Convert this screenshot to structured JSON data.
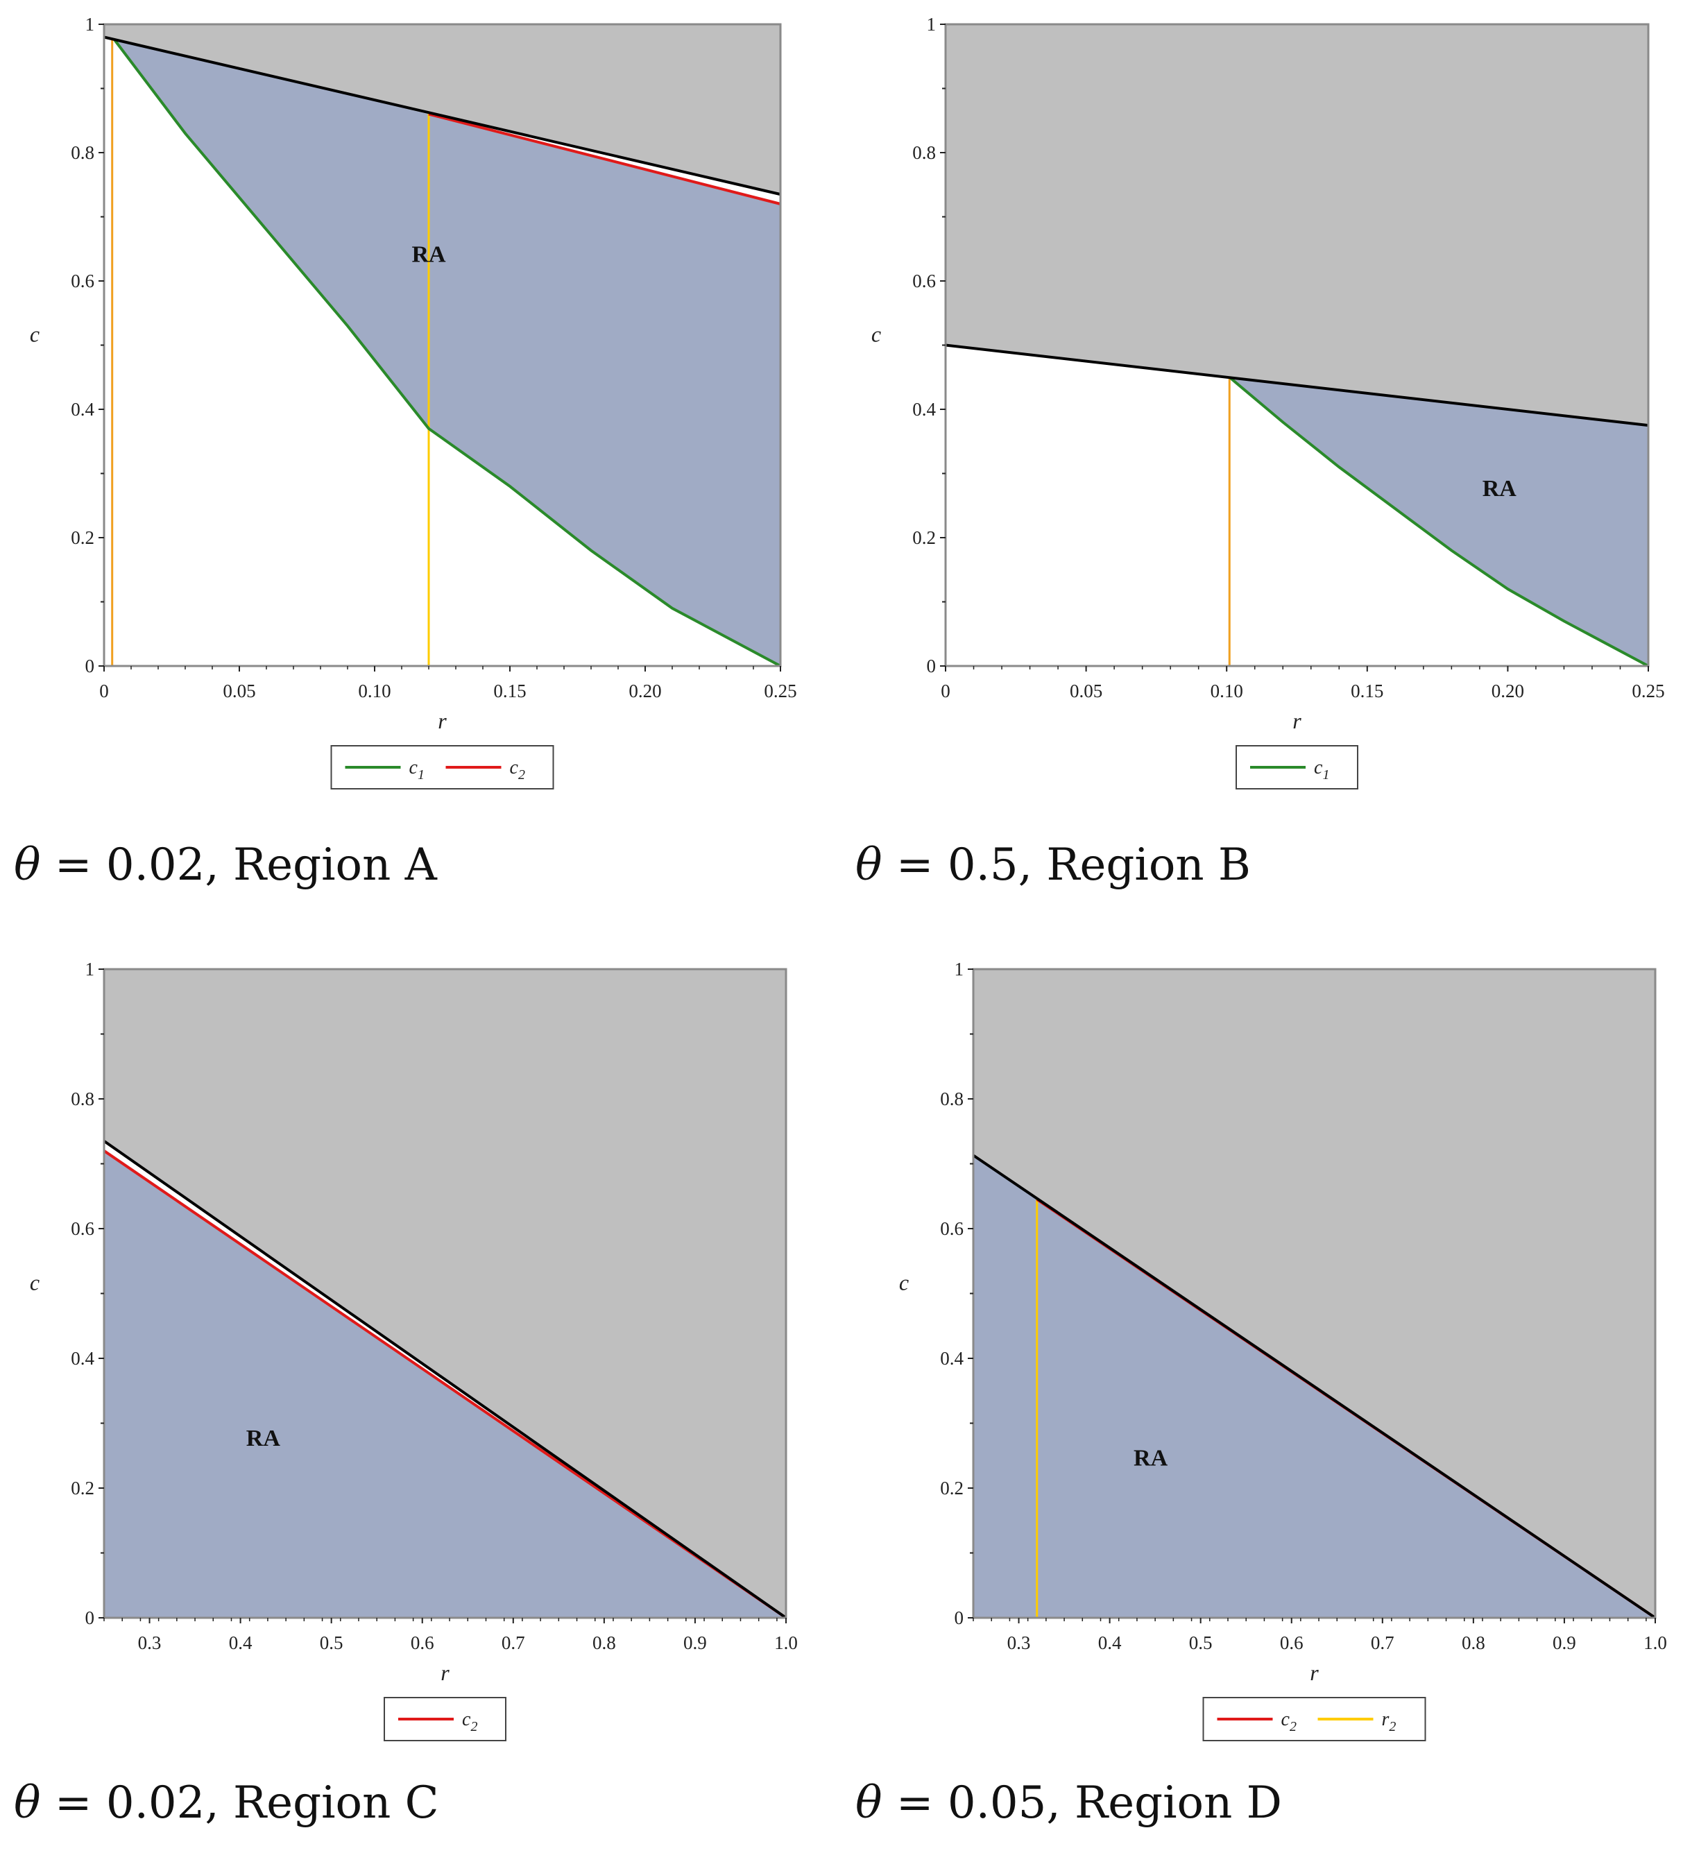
{
  "colors": {
    "grey_region": "#bfbfbf",
    "ra_region": "#a0abc5",
    "boundary": "#000000",
    "c1": "#2a8a2a",
    "c2": "#e01a1a",
    "r2": "#ffcc00",
    "vline": "#f0a020"
  },
  "chart_data": [
    {
      "type": "area",
      "caption": {
        "theta": "θ",
        "rest": " = 0.02, Region A"
      },
      "xlabel": "r",
      "ylabel": "c",
      "xlim": [
        0,
        0.25
      ],
      "ylim": [
        0,
        1
      ],
      "xticks": [
        0,
        0.05,
        0.1,
        0.15,
        0.2,
        0.25
      ],
      "xtick_labels": [
        "0",
        "0.05",
        "0.10",
        "0.15",
        "0.20",
        "0.25"
      ],
      "yticks": [
        0,
        0.2,
        0.4,
        0.6,
        0.8,
        1
      ],
      "ytick_labels": [
        "0",
        "0.2",
        "0.4",
        "0.6",
        "0.8",
        "1"
      ],
      "boundary_line": {
        "x": [
          0,
          0.25
        ],
        "y": [
          0.98,
          0.735
        ]
      },
      "curves": [
        {
          "name": "c1",
          "color": "#2a8a2a",
          "x": [
            0.004,
            0.03,
            0.06,
            0.09,
            0.12,
            0.15,
            0.18,
            0.21,
            0.25
          ],
          "y": [
            0.975,
            0.83,
            0.68,
            0.53,
            0.37,
            0.28,
            0.18,
            0.09,
            0.0
          ]
        },
        {
          "name": "c2",
          "color": "#e01a1a",
          "x": [
            0.12,
            0.25
          ],
          "y": [
            0.86,
            0.72
          ]
        }
      ],
      "vlines": [
        {
          "x": 0.003,
          "y0": 0,
          "y1": 0.977,
          "color": "#f0a020"
        },
        {
          "x": 0.12,
          "y0": 0,
          "y1": 0.862,
          "color": "#ffcc00"
        }
      ],
      "ra_label": {
        "text": "RA",
        "x": 0.12,
        "y": 0.63
      },
      "legend": [
        {
          "name": "c",
          "sub": "1",
          "color": "#2a8a2a"
        },
        {
          "name": "c",
          "sub": "2",
          "color": "#e01a1a"
        }
      ]
    },
    {
      "type": "area",
      "caption": {
        "theta": "θ",
        "rest": " = 0.5, Region B"
      },
      "xlabel": "r",
      "ylabel": "c",
      "xlim": [
        0,
        0.25
      ],
      "ylim": [
        0,
        1
      ],
      "xticks": [
        0,
        0.05,
        0.1,
        0.15,
        0.2,
        0.25
      ],
      "xtick_labels": [
        "0",
        "0.05",
        "0.10",
        "0.15",
        "0.20",
        "0.25"
      ],
      "yticks": [
        0,
        0.2,
        0.4,
        0.6,
        0.8,
        1
      ],
      "ytick_labels": [
        "0",
        "0.2",
        "0.4",
        "0.6",
        "0.8",
        "1"
      ],
      "boundary_line": {
        "x": [
          0,
          0.25
        ],
        "y": [
          0.5,
          0.375
        ]
      },
      "curves": [
        {
          "name": "c1",
          "color": "#2a8a2a",
          "x": [
            0.101,
            0.12,
            0.14,
            0.16,
            0.18,
            0.2,
            0.22,
            0.25
          ],
          "y": [
            0.45,
            0.38,
            0.31,
            0.245,
            0.18,
            0.12,
            0.07,
            0.0
          ]
        }
      ],
      "vlines": [
        {
          "x": 0.101,
          "y0": 0,
          "y1": 0.449,
          "color": "#f0a020"
        }
      ],
      "ra_label": {
        "text": "RA",
        "x": 0.197,
        "y": 0.265
      },
      "legend": [
        {
          "name": "c",
          "sub": "1",
          "color": "#2a8a2a"
        }
      ]
    },
    {
      "type": "area",
      "caption": {
        "theta": "θ",
        "rest": " = 0.02, Region C"
      },
      "xlabel": "r",
      "ylabel": "c",
      "xlim": [
        0.25,
        1.0
      ],
      "ylim": [
        0,
        1
      ],
      "xticks": [
        0.3,
        0.4,
        0.5,
        0.6,
        0.7,
        0.8,
        0.9,
        1.0
      ],
      "xtick_labels": [
        "0.3",
        "0.4",
        "0.5",
        "0.6",
        "0.7",
        "0.8",
        "0.9",
        "1.0"
      ],
      "yticks": [
        0,
        0.2,
        0.4,
        0.6,
        0.8,
        1
      ],
      "ytick_labels": [
        "0",
        "0.2",
        "0.4",
        "0.6",
        "0.8",
        "1"
      ],
      "boundary_line": {
        "x": [
          0.25,
          1.0
        ],
        "y": [
          0.735,
          0.0
        ]
      },
      "curves": [
        {
          "name": "c2",
          "color": "#e01a1a",
          "x": [
            0.25,
            1.0
          ],
          "y": [
            0.72,
            0.0
          ]
        }
      ],
      "vlines": [],
      "ra_label": {
        "text": "RA",
        "x": 0.425,
        "y": 0.265
      },
      "legend": [
        {
          "name": "c",
          "sub": "2",
          "color": "#e01a1a"
        }
      ]
    },
    {
      "type": "area",
      "caption": {
        "theta": "θ",
        "rest": " = 0.05, Region D"
      },
      "xlabel": "r",
      "ylabel": "c",
      "xlim": [
        0.25,
        1.0
      ],
      "ylim": [
        0,
        1
      ],
      "xticks": [
        0.3,
        0.4,
        0.5,
        0.6,
        0.7,
        0.8,
        0.9,
        1.0
      ],
      "xtick_labels": [
        "0.3",
        "0.4",
        "0.5",
        "0.6",
        "0.7",
        "0.8",
        "0.9",
        "1.0"
      ],
      "yticks": [
        0,
        0.2,
        0.4,
        0.6,
        0.8,
        1
      ],
      "ytick_labels": [
        "0",
        "0.2",
        "0.4",
        "0.6",
        "0.8",
        "1"
      ],
      "boundary_line": {
        "x": [
          0.25,
          1.0
        ],
        "y": [
          0.713,
          0.0
        ]
      },
      "curves": [
        {
          "name": "c2",
          "color": "#e01a1a",
          "x": [
            0.32,
            1.0
          ],
          "y": [
            0.645,
            0.0
          ]
        }
      ],
      "vlines": [
        {
          "x": 0.32,
          "y0": 0,
          "y1": 0.647,
          "color": "#ffcc00"
        }
      ],
      "ra_label": {
        "text": "RA",
        "x": 0.445,
        "y": 0.235
      },
      "legend": [
        {
          "name": "c",
          "sub": "2",
          "color": "#e01a1a"
        },
        {
          "name": "r",
          "sub": "2",
          "color": "#ffcc00"
        }
      ]
    }
  ]
}
